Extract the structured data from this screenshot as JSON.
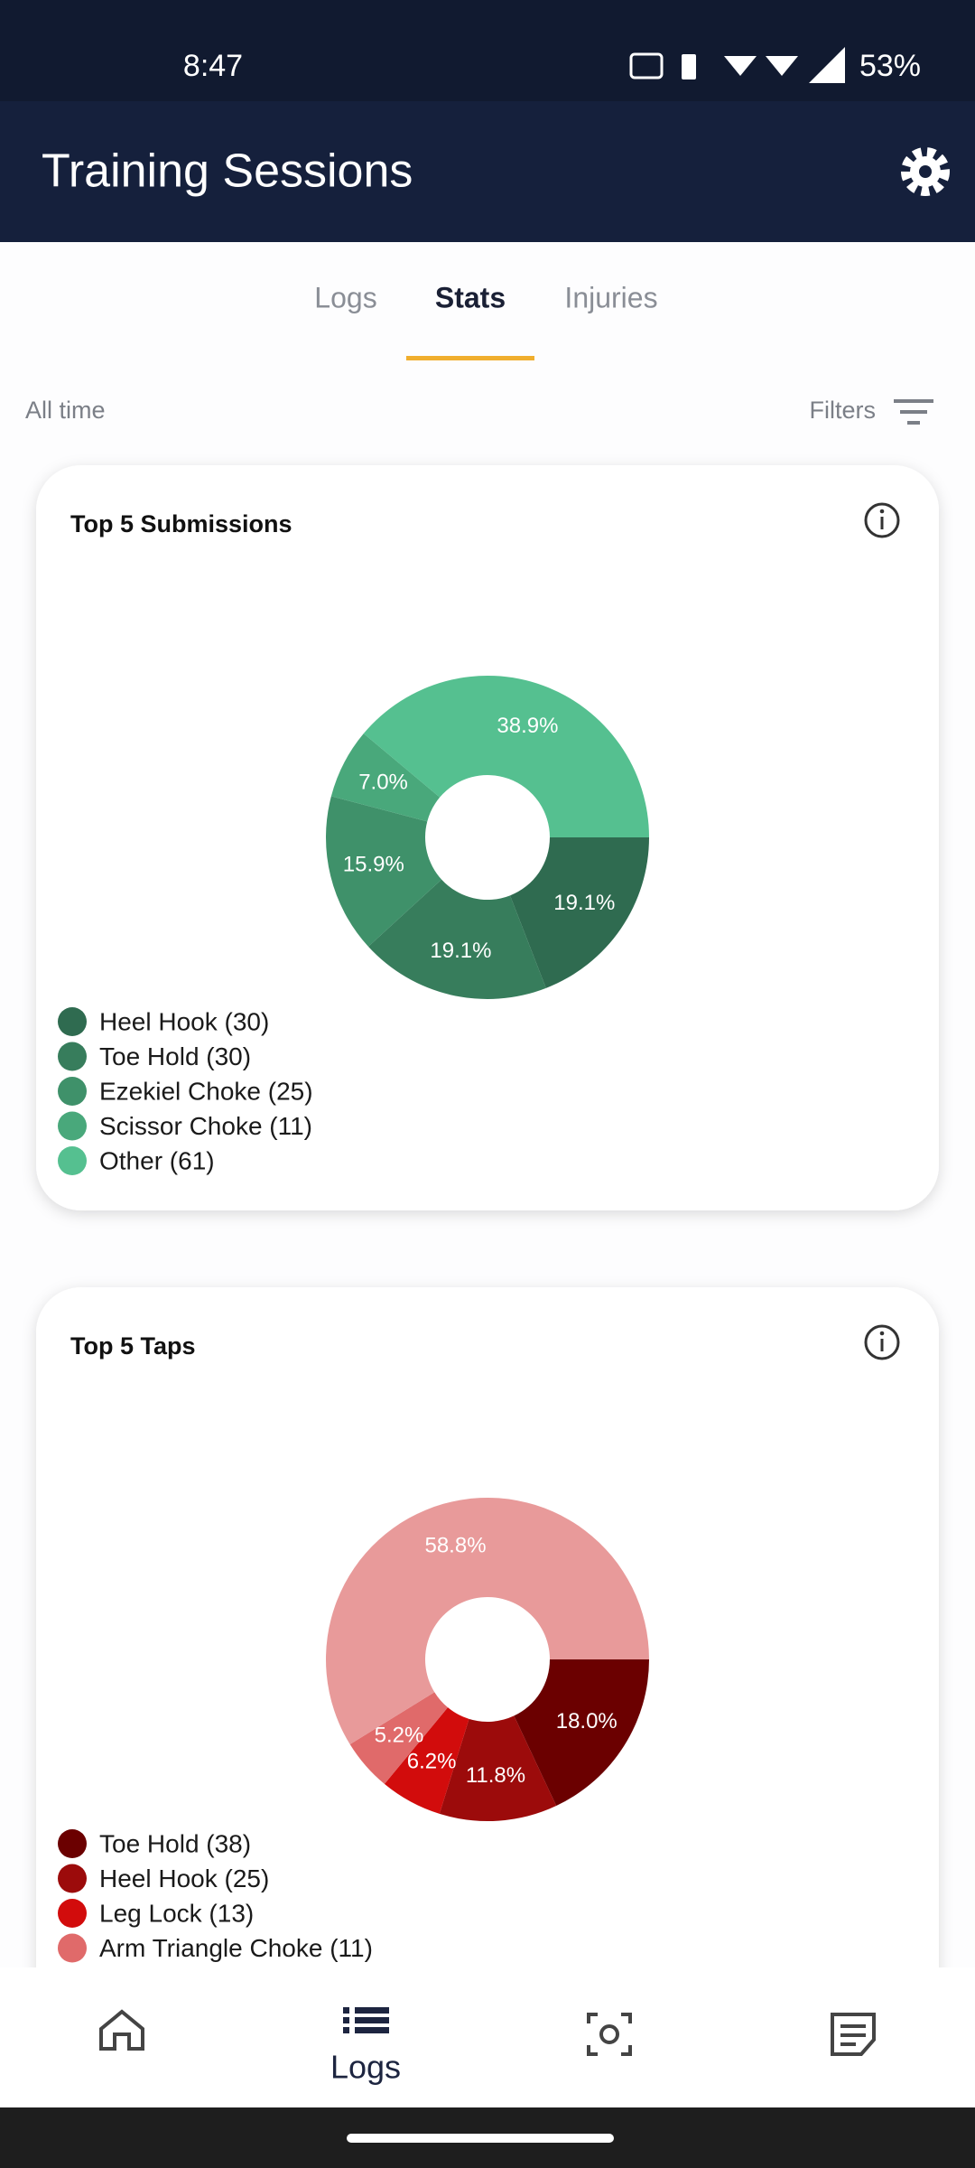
{
  "status_bar": {
    "time": "8:47",
    "battery": "53%"
  },
  "app_bar": {
    "title": "Training Sessions"
  },
  "tabs": {
    "items": [
      "Logs",
      "Stats",
      "Injuries"
    ],
    "active": 1
  },
  "filter_bar": {
    "range": "All time",
    "filters": "Filters"
  },
  "cards": [
    {
      "title": "Top 5 Submissions",
      "chart_data": {
        "type": "pie",
        "categories": [
          "Heel Hook (30)",
          "Toe Hold (30)",
          "Ezekiel Choke (25)",
          "Scissor Choke (11)",
          "Other (61)"
        ],
        "values": [
          19.1,
          19.1,
          15.9,
          7.0,
          38.9
        ],
        "value_labels": [
          "19.1%",
          "19.1%",
          "15.9%",
          "7.0%",
          "38.9%"
        ],
        "colors": [
          "#2f6b50",
          "#377d5c",
          "#3f916a",
          "#49a87b",
          "#55c090"
        ]
      }
    },
    {
      "title": "Top 5 Taps",
      "chart_data": {
        "type": "pie",
        "categories": [
          "Toe Hold (38)",
          "Heel Hook (25)",
          "Leg Lock (13)",
          "Arm Triangle Choke (11)",
          null
        ],
        "values": [
          18.0,
          11.8,
          6.2,
          5.2,
          58.8
        ],
        "value_labels": [
          "18.0%",
          "11.8%",
          "6.2%",
          "5.2%",
          "58.8%"
        ],
        "colors": [
          "#6b0000",
          "#9c0b0b",
          "#d20c0c",
          "#e06a6a",
          "#e89a9a"
        ]
      }
    }
  ],
  "bottom_nav": {
    "active_label": "Logs"
  }
}
